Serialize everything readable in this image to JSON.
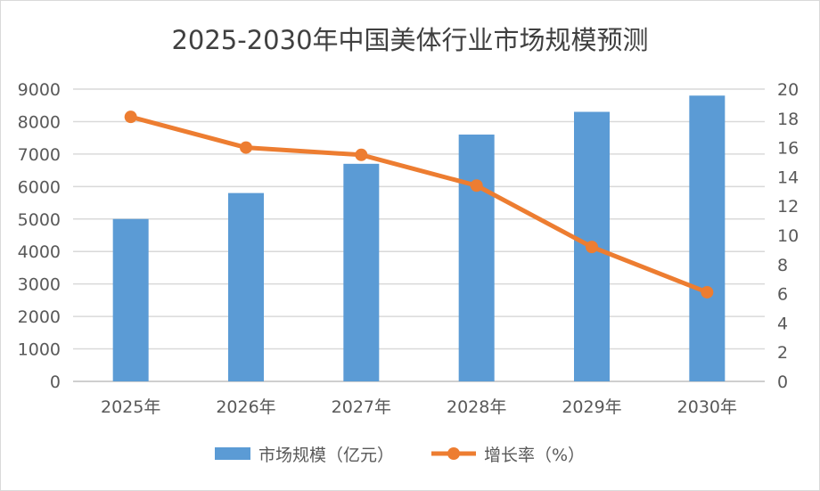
{
  "chart_data": {
    "type": "bar+line",
    "title": "2025-2030年中国美体行业市场规模预测",
    "categories": [
      "2025年",
      "2026年",
      "2027年",
      "2028年",
      "2029年",
      "2030年"
    ],
    "series": [
      {
        "name": "市场规模（亿元）",
        "type": "bar",
        "axis": "left",
        "color": "#5b9bd5",
        "values": [
          5000,
          5800,
          6700,
          7600,
          8300,
          8800
        ]
      },
      {
        "name": "增长率（%）",
        "type": "line",
        "axis": "right",
        "color": "#ed7d31",
        "values": [
          18.1,
          16.0,
          15.5,
          13.4,
          9.2,
          6.1
        ]
      }
    ],
    "y_left": {
      "min": 0,
      "max": 9000,
      "ticks": [
        0,
        1000,
        2000,
        3000,
        4000,
        5000,
        6000,
        7000,
        8000,
        9000
      ]
    },
    "y_right": {
      "min": 0,
      "max": 20,
      "ticks": [
        0,
        2,
        4,
        6,
        8,
        10,
        12,
        14,
        16,
        18,
        20
      ]
    },
    "grid": true,
    "legend": "bottom"
  }
}
